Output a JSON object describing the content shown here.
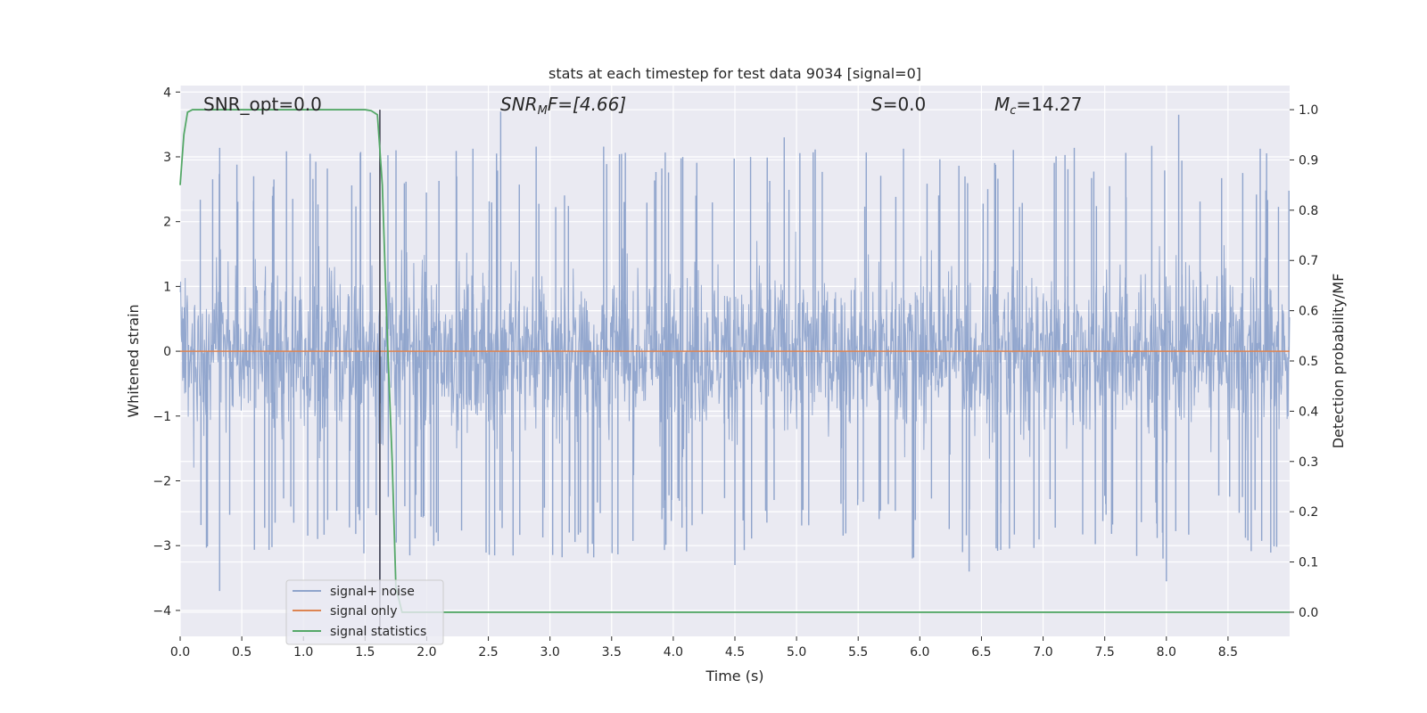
{
  "chart_data": {
    "type": "line",
    "title": "stats at each timestep for test data 9034 [signal=0]",
    "xlabel": "Time (s)",
    "ylabel": "Whitened strain",
    "y2label": "Detection probability/MF",
    "xlim": [
      0.0,
      9.0
    ],
    "ylim": [
      -4.4,
      4.1
    ],
    "y2lim": [
      -0.048,
      1.048
    ],
    "xticks": [
      "0.0",
      "0.5",
      "1.0",
      "1.5",
      "2.0",
      "2.5",
      "3.0",
      "3.5",
      "4.0",
      "4.5",
      "5.0",
      "5.5",
      "6.0",
      "6.5",
      "7.0",
      "7.5",
      "8.0",
      "8.5"
    ],
    "yticks": [
      "4",
      "3",
      "2",
      "1",
      "0",
      "−1",
      "−2",
      "−3",
      "−4"
    ],
    "y2ticks": [
      "1.0",
      "0.9",
      "0.8",
      "0.7",
      "0.6",
      "0.5",
      "0.4",
      "0.3",
      "0.2",
      "0.1",
      "0.0"
    ],
    "grid": true,
    "legend_position": "lower-left",
    "annotations": {
      "snr_opt": "SNR_opt=0.0",
      "snr_mf_base": "SNR",
      "snr_mf_sub": "M",
      "snr_mf_rest": "F=[4.66]",
      "s_base": "S",
      "s_rest": "=0.0",
      "mc_base": "M",
      "mc_sub": "c",
      "mc_rest": "=14.27"
    },
    "marker_line_x": 1.62,
    "series": [
      {
        "name": "signal+ noise",
        "axis": "left",
        "color": "#8fa4cc",
        "description_values": "whitened noise, amplitude mostly within ±2.5, peaks to ±3.7",
        "noise_envelope": 2.6,
        "noise_peaks": [
          {
            "x": 0.32,
            "y": -3.7
          },
          {
            "x": 1.62,
            "y": -3.6
          },
          {
            "x": 2.6,
            "y": 3.7
          },
          {
            "x": 4.9,
            "y": 3.3
          },
          {
            "x": 8.1,
            "y": 3.65
          },
          {
            "x": 8.0,
            "y": -3.55
          },
          {
            "x": 6.4,
            "y": -3.4
          },
          {
            "x": 4.5,
            "y": -3.3
          }
        ]
      },
      {
        "name": "signal only",
        "axis": "left",
        "color": "#dd8452",
        "x": [
          0.0,
          9.0
        ],
        "y": [
          0.0,
          0.0
        ]
      },
      {
        "name": "signal statistics",
        "axis": "right",
        "color": "#55a868",
        "x": [
          0.0,
          0.03,
          0.06,
          0.1,
          1.5,
          1.55,
          1.6,
          1.64,
          1.68,
          1.72,
          1.75,
          1.8,
          9.0
        ],
        "y": [
          0.85,
          0.95,
          0.995,
          1.0,
          1.0,
          0.998,
          0.99,
          0.85,
          0.55,
          0.3,
          0.05,
          0.0,
          0.0
        ]
      }
    ]
  }
}
